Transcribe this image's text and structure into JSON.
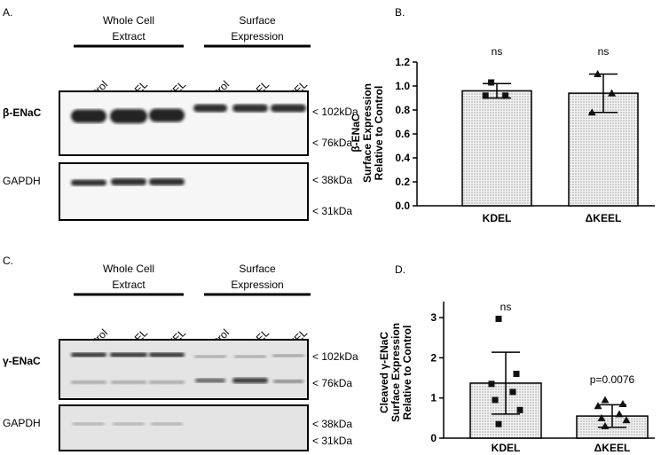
{
  "panels": [
    {
      "label": "A.",
      "groups": [
        {
          "lines": [
            "Whole Cell",
            "Extract"
          ]
        },
        {
          "lines": [
            "Surface",
            "Expression"
          ]
        }
      ],
      "lanes": [
        "Control",
        "KDEL",
        "ΔKEEL",
        "Control",
        "KDEL",
        "ΔKEEL"
      ],
      "rows": [
        "β-ENaC",
        "GAPDH"
      ],
      "markers": [
        "< 102kDa",
        "< 76kDa",
        "< 38kDa",
        "< 31kDa"
      ]
    },
    {
      "label": "C.",
      "groups": [
        {
          "lines": [
            "Whole Cell",
            "Extract"
          ]
        },
        {
          "lines": [
            "Surface",
            "Expression"
          ]
        }
      ],
      "lanes": [
        "Control",
        "KDEL",
        "ΔKEEL",
        "Control",
        "KDEL",
        "ΔKEEL"
      ],
      "rows": [
        "γ-ENaC",
        "GAPDH"
      ],
      "markers": [
        "< 102kDa",
        "< 76kDa",
        "< 38kDa",
        "< 31kDa"
      ]
    }
  ],
  "chart_data": [
    {
      "type": "bar",
      "panel_label": "B.",
      "ylabel": [
        "β-ENaC",
        "Surface Expression",
        "Relative to Control"
      ],
      "categories": [
        "KDEL",
        "ΔKEEL"
      ],
      "values": [
        0.96,
        0.94
      ],
      "errors": [
        0.06,
        0.16
      ],
      "points": [
        [
          1.03,
          0.92,
          0.92
        ],
        [
          1.1,
          0.94,
          0.78
        ]
      ],
      "annotations": [
        "ns",
        "ns"
      ],
      "ylim": [
        0,
        1.2
      ],
      "yticks": [
        {
          "value": 0,
          "label": "0.0"
        },
        0.2,
        0.4,
        0.6,
        0.8,
        {
          "value": 1,
          "label": "1.0"
        },
        1.2
      ]
    },
    {
      "type": "bar",
      "panel_label": "D.",
      "ylabel": [
        "Cleaved γ-ENaC",
        "Surface Expression",
        "Relative to Control"
      ],
      "categories": [
        "KDEL",
        "ΔKEEL"
      ],
      "values": [
        1.37,
        0.55
      ],
      "errors": [
        0.77,
        0.28
      ],
      "points": [
        [
          2.97,
          1.6,
          1.35,
          1.15,
          0.95,
          0.7,
          0.35
        ],
        [
          0.95,
          0.85,
          0.8,
          0.6,
          0.5,
          0.45,
          0.3
        ]
      ],
      "annotations": [
        "ns",
        "p=0.0076"
      ],
      "ylim": [
        0,
        3.4
      ],
      "yticks": [
        0,
        1,
        2,
        3
      ]
    }
  ]
}
